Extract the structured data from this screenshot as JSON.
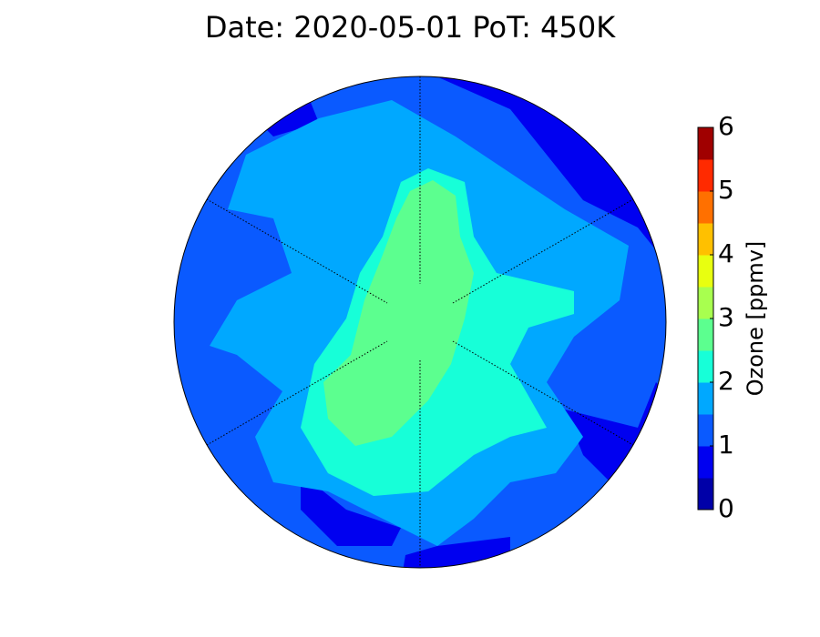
{
  "title": "Date: 2020-05-01 PoT: 450K",
  "colorbar": {
    "label": "Ozone [ppmv]",
    "range": [
      0,
      6
    ],
    "ticks": [
      0,
      1,
      2,
      3,
      4,
      5,
      6
    ],
    "colors": [
      "#0000a8",
      "#0000f0",
      "#0a5aff",
      "#00a8ff",
      "#17ffd8",
      "#5cff8f",
      "#a8ff4f",
      "#e8ff10",
      "#ffc000",
      "#ff7000",
      "#ff2a00",
      "#a00000"
    ]
  }
}
